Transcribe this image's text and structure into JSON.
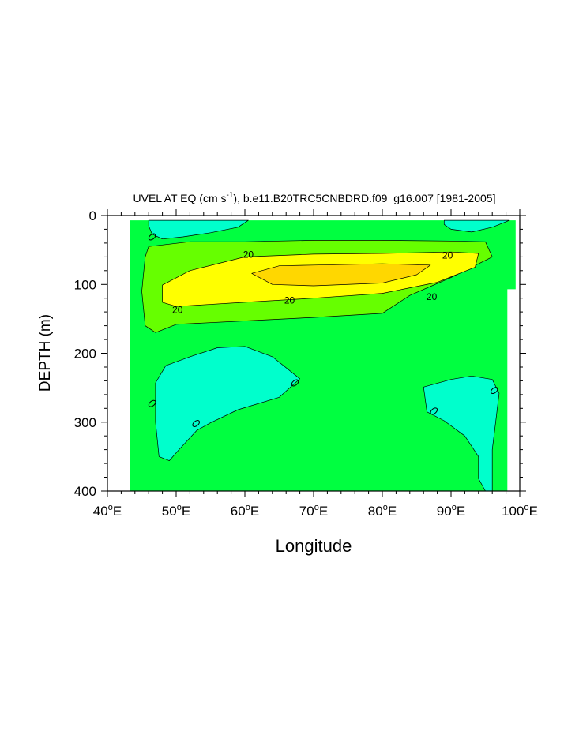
{
  "chart_data": {
    "type": "contour",
    "title": "UVEL AT EQ (cm s-1), b.e11.B20TRC5CNBDRD.f09_g16.007 [1981-2005]",
    "title_parts": {
      "before_sup": "UVEL AT EQ (cm s",
      "sup": "-1",
      "after_sup": "), b.e11.B20TRC5CNBDRD.f09_g16.007 [1981-2005]"
    },
    "xlabel": "Longitude",
    "ylabel": "DEPTH (m)",
    "xlim": [
      40,
      100
    ],
    "ylim": [
      400,
      0
    ],
    "y_reversed": true,
    "x_ticks": [
      {
        "value": 40,
        "label": "40",
        "sup": "o",
        "suffix": "E"
      },
      {
        "value": 50,
        "label": "50",
        "sup": "o",
        "suffix": "E"
      },
      {
        "value": 60,
        "label": "60",
        "sup": "o",
        "suffix": "E"
      },
      {
        "value": 70,
        "label": "70",
        "sup": "o",
        "suffix": "E"
      },
      {
        "value": 80,
        "label": "80",
        "sup": "o",
        "suffix": "E"
      },
      {
        "value": 90,
        "label": "90",
        "sup": "o",
        "suffix": "E"
      },
      {
        "value": 100,
        "label": "100",
        "sup": "o",
        "suffix": "E"
      }
    ],
    "y_ticks": [
      {
        "value": 0,
        "label": "0"
      },
      {
        "value": 100,
        "label": "100"
      },
      {
        "value": 200,
        "label": "200"
      },
      {
        "value": 300,
        "label": "300"
      },
      {
        "value": 400,
        "label": "400"
      }
    ],
    "colors": {
      "background_level": "#00ff40",
      "negative_level": "#00ffcc",
      "level_10_20": "#66ff00",
      "level_20_30": "#ffff00",
      "level_30_plus": "#ffd700",
      "contour_line": "#000000"
    },
    "regions": [
      {
        "name": "zero-to-ten",
        "fill": "background_level",
        "points": [
          [
            43.3,
            7
          ],
          [
            99.4,
            7
          ],
          [
            99.4,
            107
          ],
          [
            98.2,
            107
          ],
          [
            98.2,
            400
          ],
          [
            43.3,
            400
          ]
        ]
      },
      {
        "name": "negative-top-left",
        "fill": "negative_level",
        "points": [
          [
            46,
            7
          ],
          [
            60.5,
            7
          ],
          [
            59,
            17
          ],
          [
            55,
            25
          ],
          [
            51,
            31
          ],
          [
            48,
            34
          ],
          [
            46.5,
            27
          ],
          [
            46,
            15
          ]
        ]
      },
      {
        "name": "negative-top-right",
        "fill": "negative_level",
        "points": [
          [
            89,
            7
          ],
          [
            98.5,
            7
          ],
          [
            96,
            17
          ],
          [
            93,
            24
          ],
          [
            90,
            20
          ],
          [
            89,
            13
          ]
        ]
      },
      {
        "name": "ten-to-twenty",
        "fill": "level_10_20",
        "points": [
          [
            46,
            45
          ],
          [
            52,
            38
          ],
          [
            60,
            38
          ],
          [
            70,
            36
          ],
          [
            80,
            36
          ],
          [
            90,
            37
          ],
          [
            95,
            38
          ],
          [
            96,
            60
          ],
          [
            90,
            90
          ],
          [
            84,
            116
          ],
          [
            80,
            142
          ],
          [
            70,
            148
          ],
          [
            60,
            153
          ],
          [
            50,
            158
          ],
          [
            47,
            170
          ],
          [
            45.5,
            160
          ],
          [
            45,
            110
          ],
          [
            45.5,
            60
          ]
        ]
      },
      {
        "name": "twenty-to-thirty",
        "fill": "level_20_30",
        "points": [
          [
            48,
            101
          ],
          [
            52,
            80
          ],
          [
            60,
            60
          ],
          [
            70,
            56
          ],
          [
            80,
            55
          ],
          [
            90,
            53
          ],
          [
            94,
            55
          ],
          [
            93.5,
            75
          ],
          [
            88,
            97
          ],
          [
            80,
            113
          ],
          [
            70,
            120
          ],
          [
            60,
            126
          ],
          [
            50,
            132
          ],
          [
            48,
            126
          ]
        ]
      },
      {
        "name": "thirty-plus",
        "fill": "level_30_plus",
        "points": [
          [
            61,
            84
          ],
          [
            65,
            73
          ],
          [
            70,
            72
          ],
          [
            80,
            70
          ],
          [
            87,
            72
          ],
          [
            85,
            86
          ],
          [
            80,
            98
          ],
          [
            70,
            102
          ],
          [
            64,
            100
          ]
        ]
      },
      {
        "name": "negative-bottom-left",
        "fill": "negative_level",
        "points": [
          [
            47,
            243
          ],
          [
            48.5,
            218
          ],
          [
            52,
            205
          ],
          [
            56,
            192
          ],
          [
            60,
            190
          ],
          [
            64,
            205
          ],
          [
            68,
            237
          ],
          [
            65,
            264
          ],
          [
            59,
            282
          ],
          [
            55,
            301
          ],
          [
            53,
            312
          ],
          [
            50.5,
            339
          ],
          [
            49,
            356
          ],
          [
            47.5,
            350
          ],
          [
            47,
            300
          ]
        ]
      },
      {
        "name": "negative-bottom-right",
        "fill": "negative_level",
        "points": [
          [
            86,
            249
          ],
          [
            90,
            238
          ],
          [
            93,
            233
          ],
          [
            96,
            238
          ],
          [
            97,
            258
          ],
          [
            96.5,
            300
          ],
          [
            96,
            340
          ],
          [
            96,
            400
          ],
          [
            95,
            400
          ],
          [
            94,
            382
          ],
          [
            94,
            350
          ],
          [
            92,
            320
          ],
          [
            89,
            298
          ],
          [
            86.5,
            285
          ]
        ]
      }
    ],
    "contour_labels": [
      {
        "text": "20",
        "x": 60.5,
        "y": 57
      },
      {
        "text": "20",
        "x": 89.5,
        "y": 58
      },
      {
        "text": "20",
        "x": 66.5,
        "y": 123
      },
      {
        "text": "20",
        "x": 87.2,
        "y": 118
      },
      {
        "text": "20",
        "x": 50.2,
        "y": 137
      },
      {
        "text": "0",
        "x": 46.5,
        "y": 31
      },
      {
        "text": "0",
        "x": 46.5,
        "y": 273
      },
      {
        "text": "0",
        "x": 52.9,
        "y": 302
      },
      {
        "text": "0",
        "x": 67.3,
        "y": 243
      },
      {
        "text": "0",
        "x": 87.5,
        "y": 284
      },
      {
        "text": "0",
        "x": 96.3,
        "y": 254
      }
    ]
  }
}
